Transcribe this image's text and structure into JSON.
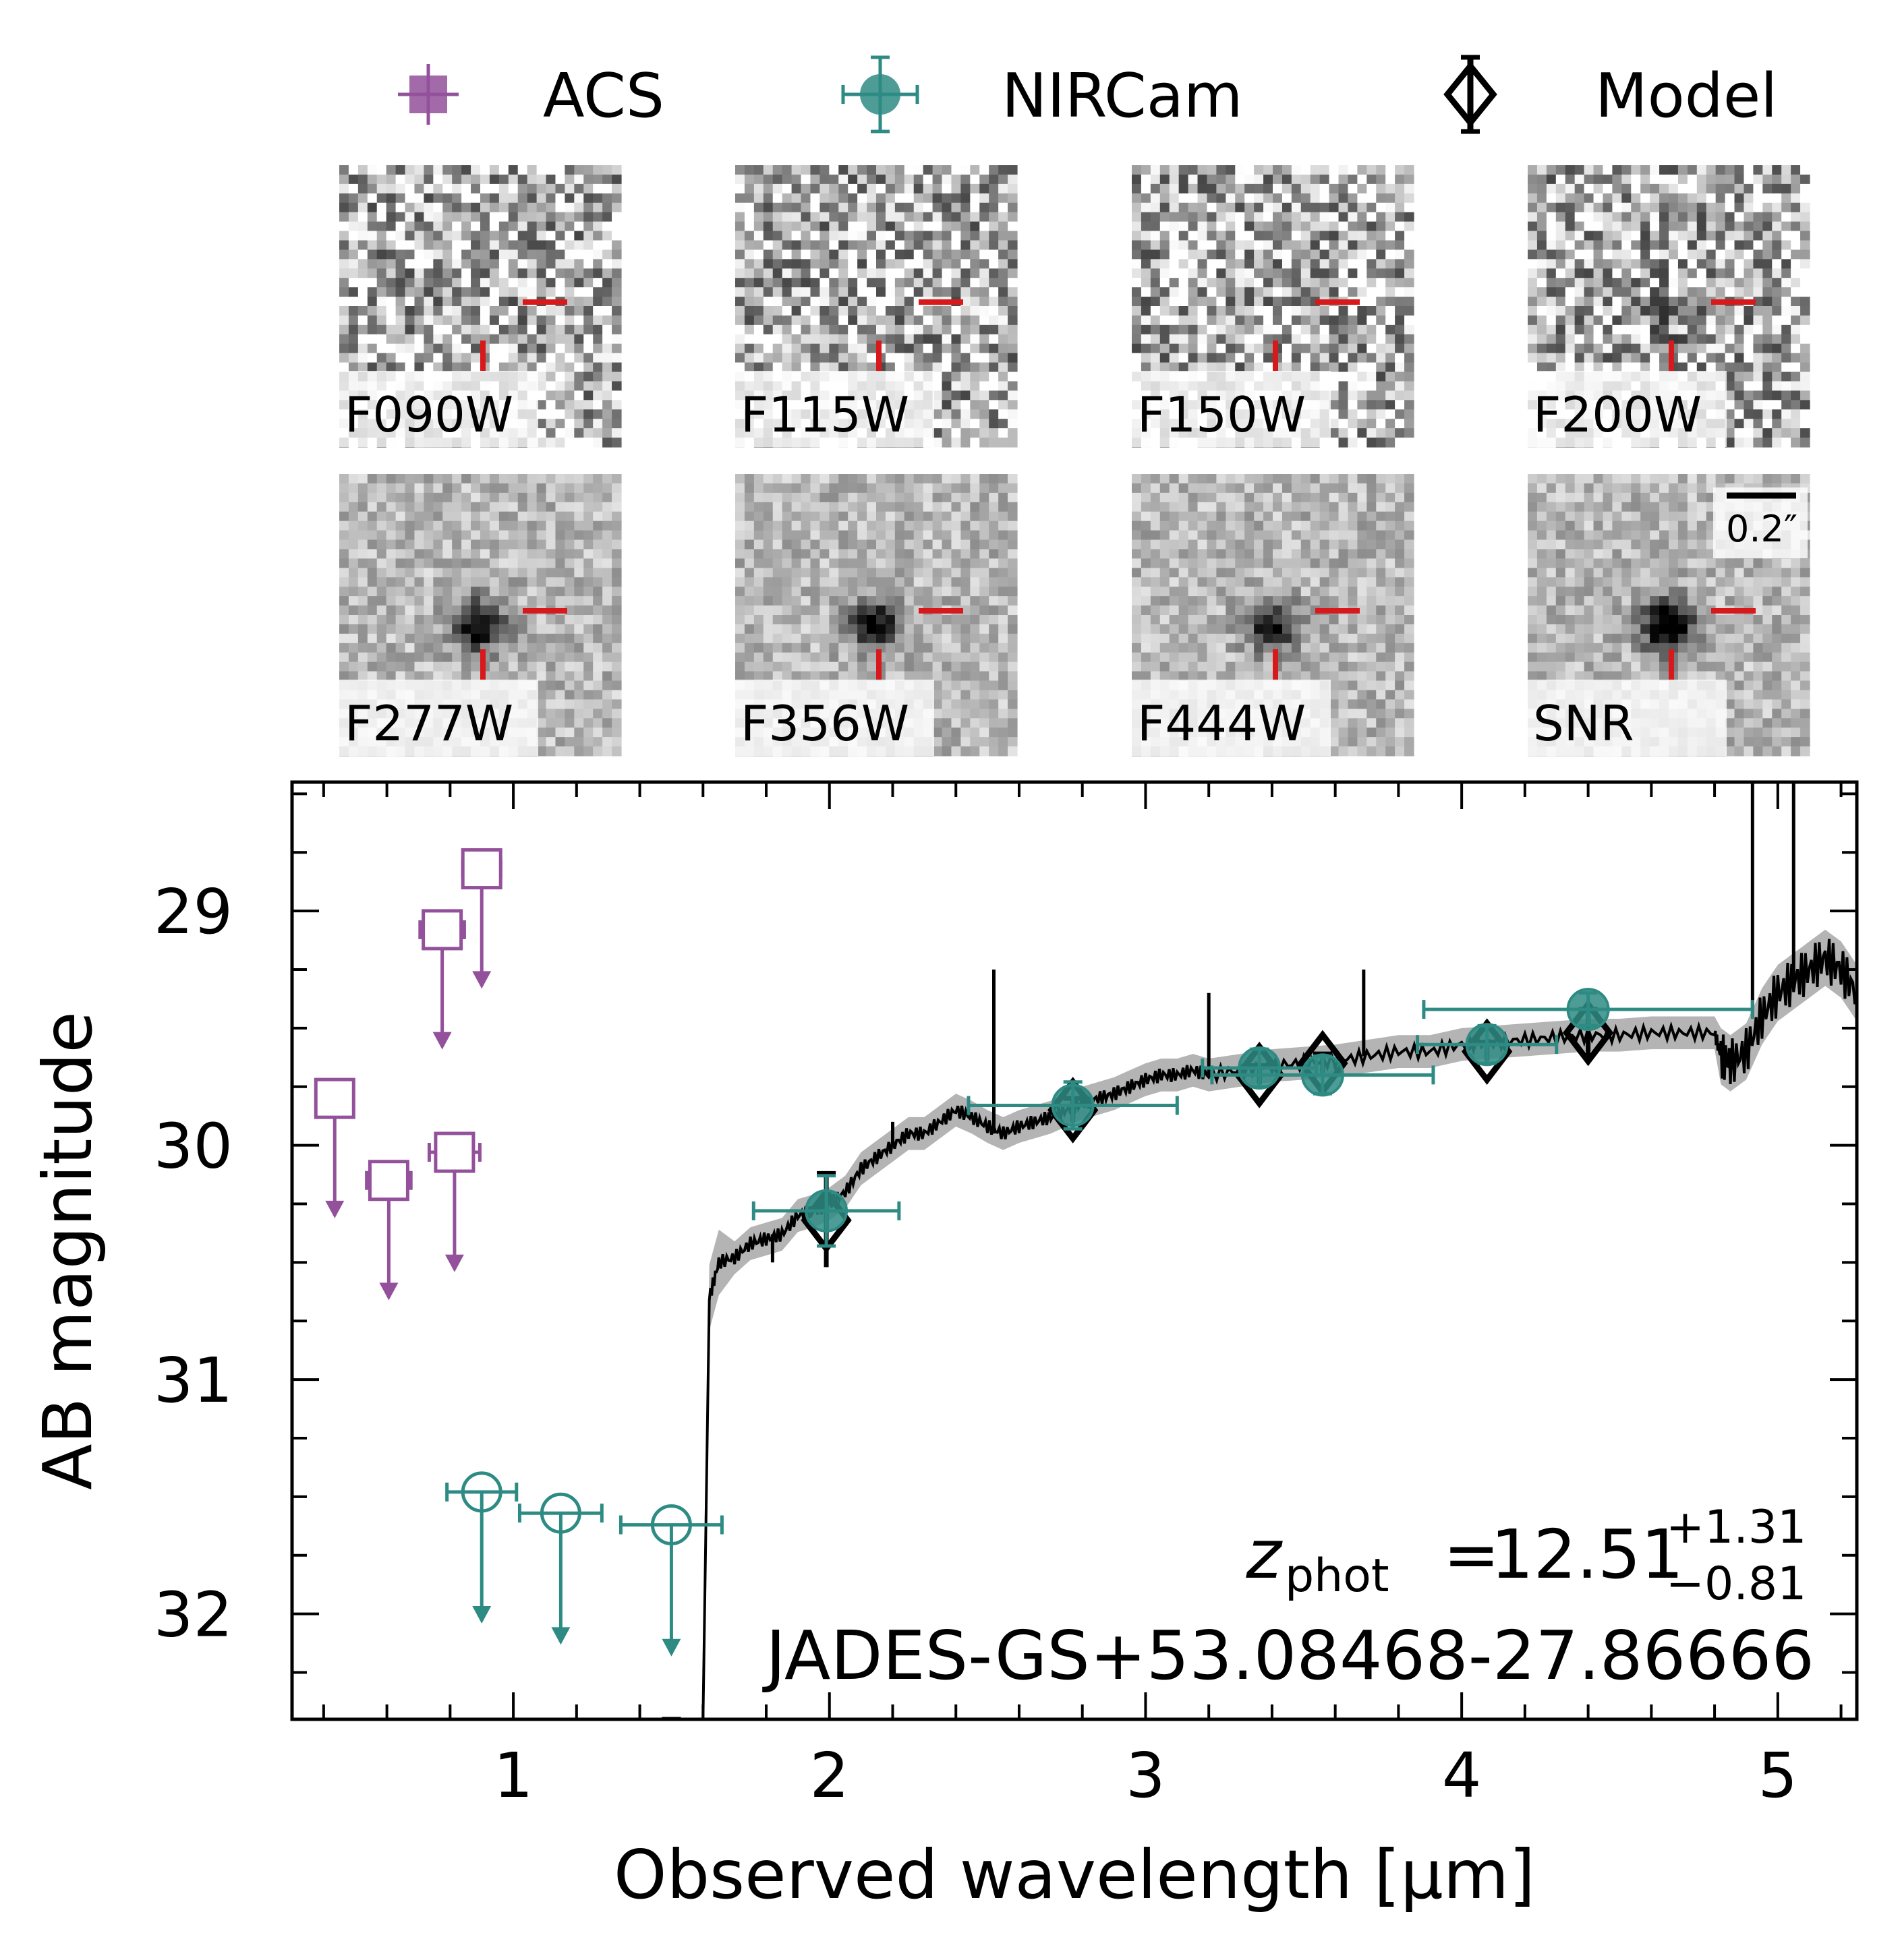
{
  "colors": {
    "acs": "#93509b",
    "nircam": "#2e8b84",
    "model": "#000000",
    "marker_line": "#d7191c",
    "band": "#b4b4b4"
  },
  "legend": [
    {
      "label": "ACS",
      "marker": "filled-square"
    },
    {
      "label": "NIRCam",
      "marker": "filled-circle"
    },
    {
      "label": "Model",
      "marker": "open-diamond"
    }
  ],
  "stamps": [
    {
      "label": "F090W",
      "signal": 0.0
    },
    {
      "label": "F115W",
      "signal": 0.0
    },
    {
      "label": "F150W",
      "signal": 0.0
    },
    {
      "label": "F200W",
      "signal": 0.45
    },
    {
      "label": "F277W",
      "signal": 0.8
    },
    {
      "label": "F356W",
      "signal": 0.75
    },
    {
      "label": "F444W",
      "signal": 0.7
    },
    {
      "label": "SNR",
      "signal": 1.0
    }
  ],
  "scale_bar_label": "0.2″",
  "chart_data": {
    "type": "scatter",
    "xlabel": "Observed wavelength  [μm]",
    "ylabel": "AB magnitude",
    "xlim": [
      0.3,
      5.25
    ],
    "ylim": [
      32.45,
      28.45
    ],
    "yaxis_inverted": true,
    "xticks": [
      1,
      2,
      3,
      4,
      5
    ],
    "yticks": [
      29,
      30,
      31,
      32
    ],
    "xtick_labels": [
      "1",
      "2",
      "3",
      "4",
      "5"
    ],
    "ytick_labels": [
      "29",
      "30",
      "31",
      "32"
    ],
    "annotation": {
      "z_symbol": "z",
      "z_subscript": "phot",
      "equals": " = ",
      "z_value": "12.51",
      "z_err_plus": "+1.31",
      "z_err_minus": "−0.81",
      "object_id": "JADES-GS+53.08468-27.86666"
    },
    "series": [
      {
        "name": "ACS",
        "kind": "upper_limits",
        "points": [
          {
            "x": 0.435,
            "y": 29.8,
            "xerr": 0.05,
            "limit_to": 30.3
          },
          {
            "x": 0.606,
            "y": 30.15,
            "xerr": 0.07,
            "limit_to": 30.65
          },
          {
            "x": 0.775,
            "y": 29.08,
            "xerr": 0.07,
            "limit_to": 29.58
          },
          {
            "x": 0.814,
            "y": 30.03,
            "xerr": 0.08,
            "limit_to": 30.53
          },
          {
            "x": 0.9,
            "y": 28.82,
            "xerr": 0.06,
            "limit_to": 29.32
          }
        ]
      },
      {
        "name": "NIRCam",
        "kind": "detections",
        "points": [
          {
            "x": 1.99,
            "y": 30.28,
            "xerr": 0.23,
            "yerr": 0.15
          },
          {
            "x": 2.77,
            "y": 29.83,
            "xerr": 0.33,
            "yerr": 0.1
          },
          {
            "x": 3.36,
            "y": 29.67,
            "xerr": 0.18,
            "yerr": 0.08
          },
          {
            "x": 3.56,
            "y": 29.7,
            "xerr": 0.35,
            "yerr": 0.08
          },
          {
            "x": 4.08,
            "y": 29.57,
            "xerr": 0.22,
            "yerr": 0.08
          },
          {
            "x": 4.4,
            "y": 29.42,
            "xerr": 0.52,
            "yerr": 0.07
          }
        ]
      },
      {
        "name": "NIRCam",
        "kind": "upper_limits",
        "points": [
          {
            "x": 0.9,
            "y": 31.48,
            "xerr": 0.11,
            "limit_to": 32.03
          },
          {
            "x": 1.15,
            "y": 31.57,
            "xerr": 0.13,
            "limit_to": 32.12
          },
          {
            "x": 1.5,
            "y": 31.62,
            "xerr": 0.16,
            "limit_to": 32.17
          }
        ]
      },
      {
        "name": "Model",
        "kind": "model_photometry",
        "points": [
          {
            "x": 1.99,
            "y": 30.32,
            "yerr_low": 0.2,
            "yerr_high": 0.2
          },
          {
            "x": 2.77,
            "y": 29.85,
            "yerr_low": 0.05,
            "yerr_high": 0.05
          },
          {
            "x": 3.36,
            "y": 29.7,
            "yerr_low": 0.04,
            "yerr_high": 0.04
          },
          {
            "x": 3.56,
            "y": 29.65,
            "yerr_low": 0.04,
            "yerr_high": 0.04
          },
          {
            "x": 4.08,
            "y": 29.6,
            "yerr_low": 0.04,
            "yerr_high": 0.04
          },
          {
            "x": 4.4,
            "y": 29.52,
            "yerr_low": 0.1,
            "yerr_high": 0.1
          },
          {
            "x": 1.5,
            "y": 32.45,
            "yerr_low": 0.7,
            "yerr_high": 0.0
          }
        ]
      },
      {
        "name": "Model",
        "kind": "spectrum",
        "x": [
          1.6,
          1.62,
          1.65,
          1.7,
          1.75,
          1.8,
          1.85,
          1.9,
          1.95,
          2.0,
          2.05,
          2.1,
          2.15,
          2.2,
          2.25,
          2.3,
          2.35,
          2.4,
          2.45,
          2.5,
          2.55,
          2.6,
          2.65,
          2.7,
          2.75,
          2.8,
          2.85,
          2.9,
          2.95,
          3.0,
          3.05,
          3.1,
          3.15,
          3.2,
          3.3,
          3.4,
          3.5,
          3.6,
          3.7,
          3.8,
          3.9,
          4.0,
          4.1,
          4.2,
          4.3,
          4.4,
          4.5,
          4.6,
          4.7,
          4.8,
          4.82,
          4.85,
          4.9,
          4.95,
          5.0,
          5.05,
          5.1,
          5.15,
          5.2,
          5.25
        ],
        "y": [
          32.45,
          30.65,
          30.5,
          30.48,
          30.42,
          30.4,
          30.38,
          30.3,
          30.28,
          30.25,
          30.2,
          30.1,
          30.05,
          30.0,
          29.95,
          29.95,
          29.9,
          29.85,
          29.88,
          29.92,
          29.95,
          29.92,
          29.9,
          29.88,
          29.85,
          29.82,
          29.8,
          29.78,
          29.75,
          29.72,
          29.7,
          29.7,
          29.68,
          29.7,
          29.68,
          29.66,
          29.65,
          29.64,
          29.62,
          29.6,
          29.6,
          29.57,
          29.56,
          29.55,
          29.54,
          29.53,
          29.53,
          29.52,
          29.52,
          29.52,
          29.62,
          29.65,
          29.6,
          29.45,
          29.35,
          29.3,
          29.25,
          29.2,
          29.25,
          29.35
        ],
        "lines": [
          {
            "x": 1.82,
            "y": 30.5
          },
          {
            "x": 2.2,
            "y": 29.9
          },
          {
            "x": 2.52,
            "y": 29.25
          },
          {
            "x": 3.2,
            "y": 29.35
          },
          {
            "x": 3.69,
            "y": 29.25
          },
          {
            "x": 4.92,
            "y": 28.45
          },
          {
            "x": 5.05,
            "y": 28.45
          }
        ]
      }
    ]
  }
}
